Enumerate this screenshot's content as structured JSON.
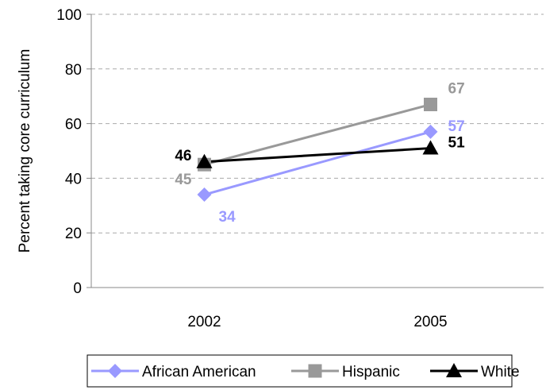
{
  "chart_data": {
    "type": "line",
    "categories": [
      "2002",
      "2005"
    ],
    "ylabel": "Percent taking core curriculum",
    "xlabel": "",
    "ylim": [
      0,
      100
    ],
    "yticks": [
      "0",
      "20",
      "40",
      "60",
      "80",
      "100"
    ],
    "grid": true,
    "legend_position": "bottom",
    "series": [
      {
        "name": "African American",
        "values": [
          34,
          57
        ],
        "labels": [
          "34",
          "57"
        ],
        "color": "#9999ff",
        "marker": "diamond"
      },
      {
        "name": "Hispanic",
        "values": [
          45,
          67
        ],
        "labels": [
          "45",
          "67"
        ],
        "color": "#999999",
        "marker": "square"
      },
      {
        "name": "White",
        "values": [
          46,
          51
        ],
        "labels": [
          "46",
          "51"
        ],
        "color": "#000000",
        "marker": "triangle"
      }
    ]
  }
}
